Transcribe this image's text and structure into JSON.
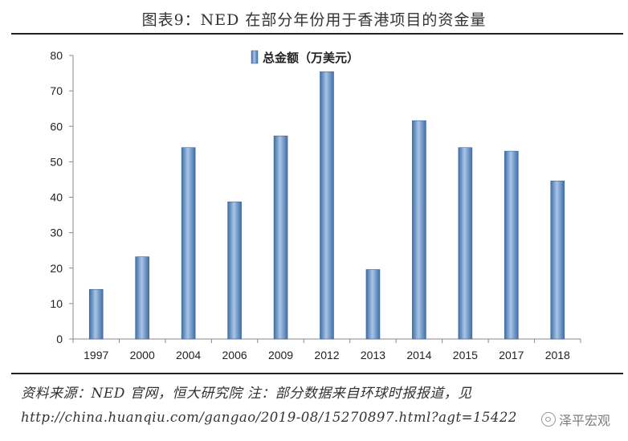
{
  "title": "图表9：NED 在部分年份用于香港项目的资金量",
  "source_line": "资料来源：NED 官网，恒大研究院 注：部分数据来自环球时报报道，见",
  "url_line": "http://china.huanqiu.com/gangao/2019-08/15270897.html?agt=15422",
  "watermark": "泽平宏观",
  "colors": {
    "bar_light": "#a9c4e6",
    "bar_dark": "#3f6fa8",
    "axis": "#888888"
  },
  "chart_data": {
    "type": "bar",
    "title": "图表9：NED 在部分年份用于香港项目的资金量",
    "categories": [
      "1997",
      "2000",
      "2004",
      "2006",
      "2009",
      "2012",
      "2013",
      "2014",
      "2015",
      "2017",
      "2018"
    ],
    "series": [
      {
        "name": "总金额（万美元）",
        "values": [
          14,
          23.2,
          54,
          38.7,
          57.3,
          75.4,
          19.6,
          61.6,
          54,
          53,
          44.6
        ]
      }
    ],
    "ylim": [
      0,
      80
    ],
    "yticks": [
      0,
      10,
      20,
      30,
      40,
      50,
      60,
      70,
      80
    ],
    "xlabel": "",
    "ylabel": "",
    "legend": "top-center",
    "grid": false
  }
}
